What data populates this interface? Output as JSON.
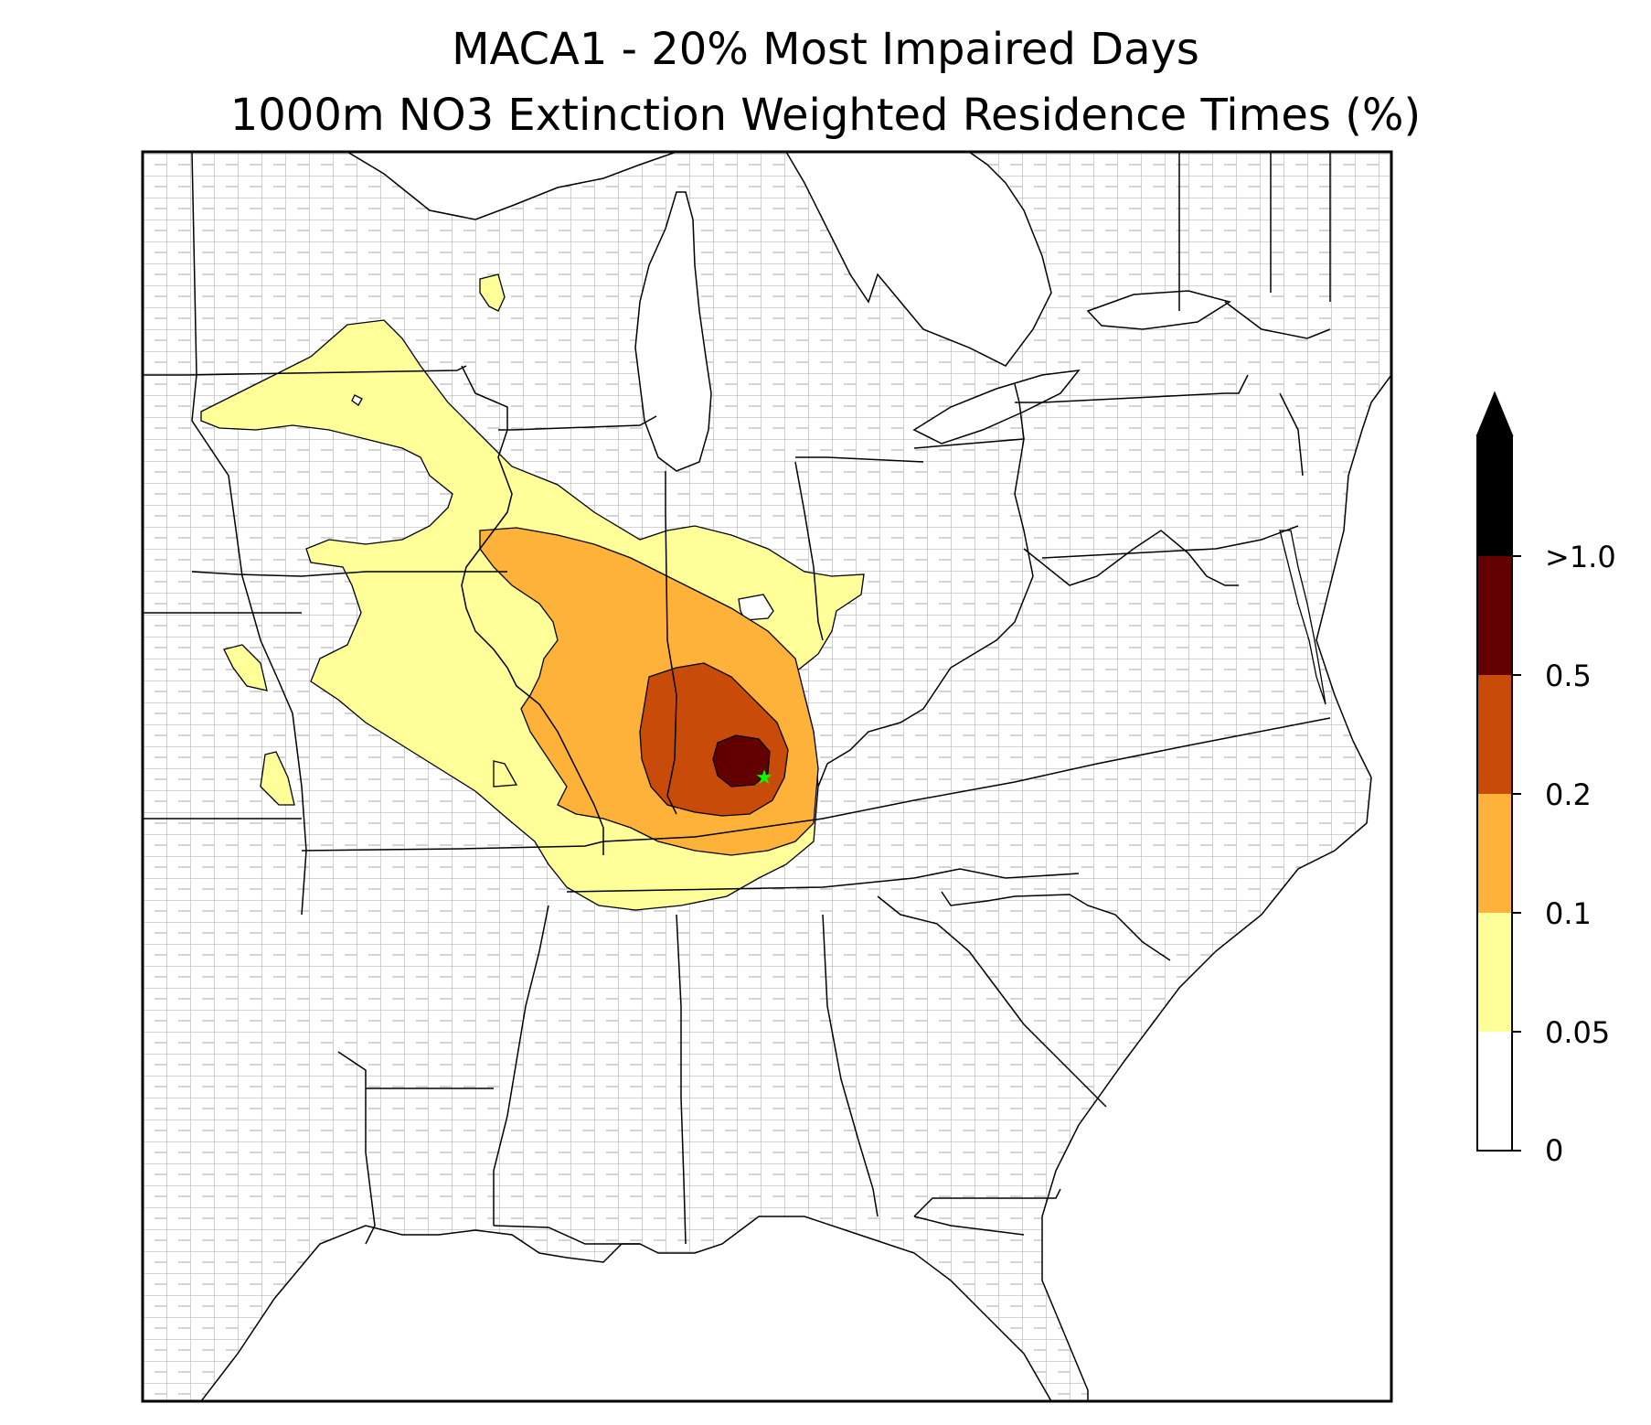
{
  "title": {
    "line1": "MACA1 - 20% Most Impaired Days",
    "line2": "1000m NO3 Extinction Weighted Residence Times (%)"
  },
  "map": {
    "receptor_marker": "star-icon",
    "receptor_color": "#00ff00",
    "county_line_color": "#9e9e9e",
    "state_line_color": "#000000"
  },
  "colorbar": {
    "levels": [
      {
        "label": "0",
        "color": "#ffffff"
      },
      {
        "label": "0.05",
        "color": "#ffff99"
      },
      {
        "label": "0.1",
        "color": "#feb23a"
      },
      {
        "label": "0.2",
        "color": "#c84b0a"
      },
      {
        "label": "0.5",
        "color": "#620000"
      },
      {
        "label": ">1.0",
        "color": "#000000"
      }
    ],
    "extend": "max"
  }
}
